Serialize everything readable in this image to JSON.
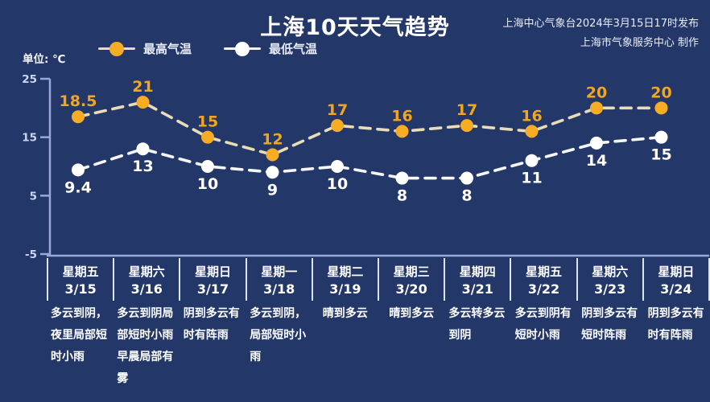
{
  "header": {
    "title": "上海10天天气趋势",
    "publisher_line1": "上海中心气象台2024年3月15日17时发布",
    "publisher_line2": "上海市气象服务中心 制作"
  },
  "unit_label": "单位: ℃",
  "legend": {
    "high_label": "最高气温",
    "low_label": "最低气温"
  },
  "colors": {
    "background": "#233769",
    "high_accent": "#f2a51e",
    "high_marker": "#f6ad25",
    "high_line": "#e9ddb8",
    "low_line": "#f5f7fa",
    "low_accent": "#ffffff",
    "axis": "#98a8d8",
    "tick_text": "#ccd6f0",
    "divider": "#dbe3f6"
  },
  "chart_data": {
    "type": "line",
    "title": "上海10天天气趋势",
    "unit": "单位: ℃",
    "categories": [
      "星期五 3/15",
      "星期六 3/16",
      "星期日 3/17",
      "星期一 3/18",
      "星期二 3/19",
      "星期三 3/20",
      "星期四 3/21",
      "星期五 3/22",
      "星期六 3/23",
      "星期日 3/24"
    ],
    "weekdays": [
      "星期五",
      "星期六",
      "星期日",
      "星期一",
      "星期二",
      "星期三",
      "星期四",
      "星期五",
      "星期六",
      "星期日"
    ],
    "dates": [
      "3/15",
      "3/16",
      "3/17",
      "3/18",
      "3/19",
      "3/20",
      "3/21",
      "3/22",
      "3/23",
      "3/24"
    ],
    "series": [
      {
        "name": "最高气温",
        "style": "dashed",
        "marker": "circle",
        "values": [
          18.5,
          21,
          15,
          12,
          17,
          16,
          17,
          16,
          20,
          20
        ]
      },
      {
        "name": "最低气温",
        "style": "dashed",
        "marker": "circle",
        "values": [
          9.4,
          13,
          10,
          9,
          10,
          8,
          8,
          11,
          14,
          15
        ]
      }
    ],
    "yticks": [
      25,
      15,
      5,
      -5
    ],
    "ylim": [
      -5,
      25
    ],
    "grid": false,
    "legend_position": "top-left"
  },
  "forecast": [
    "多云到阴，夜里局部短时小雨",
    "多云到阴局部短时小雨早晨局部有雾",
    "阴到多云有时有阵雨",
    "多云到阴，局部短时小雨",
    "晴到多云",
    "晴到多云",
    "多云转多云到阴",
    "多云到阴有短时小雨",
    "阴到多云有短时阵雨",
    "阴到多云有时有阵雨"
  ]
}
